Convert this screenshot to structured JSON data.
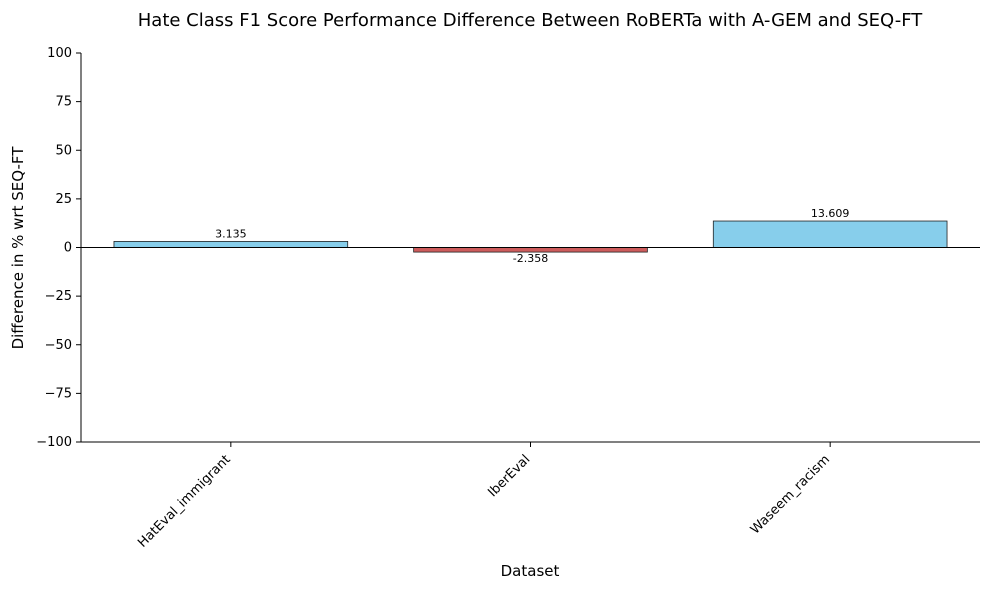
{
  "chart_data": {
    "type": "bar",
    "title": "Hate Class F1 Score Performance Difference Between RoBERTa with A-GEM and SEQ-FT",
    "xlabel": "Dataset",
    "ylabel": "Difference in % wrt SEQ-FT",
    "categories": [
      "HatEval_immigrant",
      "IberEval",
      "Waseem_racism"
    ],
    "values": [
      3.135,
      -2.358,
      13.609
    ],
    "value_labels": [
      "3.135",
      "-2.358",
      "13.609"
    ],
    "ylim": [
      -100,
      100
    ],
    "yticks": [
      100,
      75,
      50,
      25,
      0,
      -25,
      -50,
      -75,
      -100
    ],
    "ytick_labels": [
      "100",
      "75",
      "50",
      "25",
      "0",
      "−25",
      "−50",
      "−75",
      "−100"
    ],
    "grid": false,
    "colors": {
      "positive": "#87ceeb",
      "negative": "#cd5c5c",
      "edge": "#222222",
      "zero_line": "#000000"
    }
  }
}
